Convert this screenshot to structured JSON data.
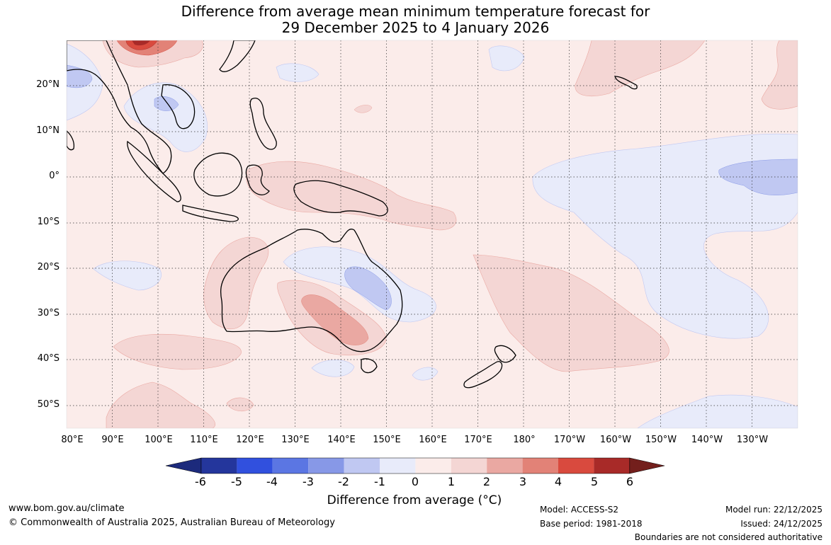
{
  "title": {
    "line1": "Difference from average mean minimum temperature forecast for",
    "line2": "29 December 2025 to 4 January 2026"
  },
  "map": {
    "lat_labels": [
      "20°N",
      "10°N",
      "0°",
      "10°S",
      "20°S",
      "30°S",
      "40°S",
      "50°S"
    ],
    "lon_labels": [
      "80°E",
      "90°E",
      "100°E",
      "110°E",
      "120°E",
      "130°E",
      "140°E",
      "150°E",
      "160°E",
      "170°E",
      "180°",
      "170°W",
      "160°W",
      "150°W",
      "140°W",
      "130°W"
    ]
  },
  "colorbar": {
    "labels": [
      "-6",
      "-5",
      "-4",
      "-3",
      "-2",
      "-1",
      "0",
      "1",
      "2",
      "3",
      "4",
      "5",
      "6"
    ],
    "colors": [
      "#24369c",
      "#3150de",
      "#5b76e3",
      "#8798e7",
      "#c0c8f2",
      "#e8ebfa",
      "#fbecea",
      "#f4d6d4",
      "#eaa8a2",
      "#e28277",
      "#d94a3e",
      "#a82a28"
    ],
    "under_color": "#1c2a7c",
    "over_color": "#731f1c",
    "title": "Difference from average (°C)"
  },
  "footer": {
    "url": "www.bom.gov.au/climate",
    "copyright": "© Commonwealth of Australia 2025, Australian Bureau of Meteorology",
    "model": "Model: ACCESS-S2",
    "base_period": "Base period: 1981-2018",
    "model_run": "Model run: 22/12/2025",
    "issued": "Issued: 24/12/2025",
    "disclaimer": "Boundaries are not considered authoritative"
  }
}
